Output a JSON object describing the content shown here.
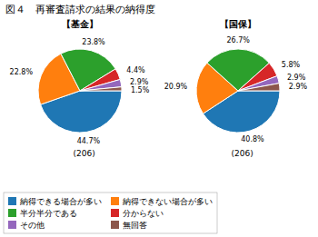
{
  "title": "図４　再審査請求の結果の納得度",
  "chart_data": [
    {
      "type": "pie",
      "title": "【基金】",
      "categories": [
        "納得できる場合が多い",
        "納得できない場合が多い",
        "半分半分である",
        "分からない",
        "その他",
        "無回答"
      ],
      "values": [
        44.7,
        22.8,
        23.8,
        4.4,
        2.9,
        1.5
      ],
      "value_labels": [
        "44.7%",
        "22.8%",
        "23.8%",
        "4.4%",
        "2.9%",
        "1.5%"
      ],
      "data_labels": true,
      "legend": "bottom",
      "annotations": [
        "(206)"
      ]
    },
    {
      "type": "pie",
      "title": "【国保】",
      "categories": [
        "納得できる場合が多い",
        "納得できない場合が多い",
        "半分半分である",
        "分からない",
        "その他",
        "無回答"
      ],
      "values": [
        40.8,
        20.9,
        26.7,
        5.8,
        2.9,
        2.9
      ],
      "value_labels": [
        "40.8%",
        "20.9%",
        "26.7%",
        "5.8%",
        "2.9%",
        "2.9%"
      ],
      "data_labels": true,
      "annotations": [
        "(206)"
      ]
    }
  ]
}
